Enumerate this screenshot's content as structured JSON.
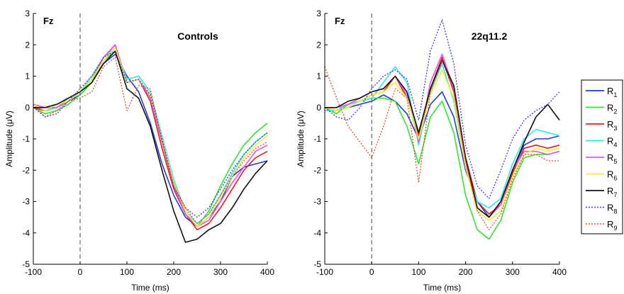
{
  "chart_data": [
    {
      "type": "line",
      "tag": "Fz",
      "title": "Controls",
      "xlabel": "Time (ms)",
      "ylabel": "Amplitude (μV)",
      "xlim": [
        -100,
        400
      ],
      "ylim": [
        -5,
        3
      ],
      "xticks": [
        "-100",
        "0",
        "100",
        "200",
        "300",
        "400"
      ],
      "yticks": [
        "-5",
        "-4",
        "-3",
        "-2",
        "-1",
        "0",
        "1",
        "2",
        "3"
      ],
      "vline_x": 0,
      "x": [
        -100,
        -75,
        -50,
        -25,
        0,
        25,
        50,
        75,
        100,
        125,
        150,
        175,
        200,
        225,
        250,
        275,
        300,
        325,
        350,
        375,
        400
      ],
      "series": [
        {
          "name": "R1",
          "values": [
            0.0,
            -0.1,
            0.0,
            0.2,
            0.4,
            0.8,
            1.4,
            1.7,
            1.0,
            0.5,
            -0.5,
            -1.8,
            -2.8,
            -3.5,
            -3.8,
            -3.5,
            -3.0,
            -2.2,
            -1.9,
            -1.8,
            -1.7
          ]
        },
        {
          "name": "R2",
          "values": [
            0.0,
            -0.2,
            -0.1,
            0.1,
            0.4,
            0.8,
            1.5,
            1.8,
            0.8,
            0.9,
            0.4,
            -1.0,
            -2.4,
            -3.3,
            -3.8,
            -3.3,
            -2.5,
            -1.8,
            -1.2,
            -0.8,
            -0.5
          ]
        },
        {
          "name": "R3",
          "values": [
            0.0,
            -0.1,
            0.0,
            0.2,
            0.5,
            0.9,
            1.6,
            2.0,
            0.8,
            0.9,
            0.2,
            -1.3,
            -2.6,
            -3.4,
            -3.9,
            -3.7,
            -3.2,
            -2.6,
            -2.0,
            -1.6,
            -1.4
          ]
        },
        {
          "name": "R4",
          "values": [
            0.1,
            -0.1,
            0.0,
            0.3,
            0.5,
            1.0,
            1.6,
            1.9,
            0.9,
            1.0,
            0.5,
            -0.9,
            -2.3,
            -3.3,
            -3.7,
            -3.4,
            -2.8,
            -2.1,
            -1.5,
            -1.1,
            -0.8
          ]
        },
        {
          "name": "R5",
          "values": [
            0.1,
            0.0,
            0.0,
            0.2,
            0.5,
            0.9,
            1.6,
            2.0,
            0.8,
            0.9,
            0.3,
            -1.1,
            -2.5,
            -3.4,
            -3.8,
            -3.6,
            -3.0,
            -2.4,
            -1.9,
            -1.4,
            -1.2
          ]
        },
        {
          "name": "R6",
          "values": [
            0.1,
            -0.1,
            0.1,
            0.2,
            0.5,
            0.9,
            1.5,
            1.9,
            0.8,
            0.9,
            0.4,
            -1.0,
            -2.4,
            -3.3,
            -3.8,
            -3.5,
            -2.9,
            -2.2,
            -1.6,
            -1.2,
            -0.9
          ]
        },
        {
          "name": "R7",
          "values": [
            0.0,
            0.0,
            0.1,
            0.3,
            0.5,
            0.8,
            1.4,
            1.8,
            0.6,
            0.3,
            -0.6,
            -2.0,
            -3.3,
            -4.3,
            -4.2,
            -3.9,
            -3.7,
            -3.2,
            -2.6,
            -2.1,
            -1.7
          ]
        },
        {
          "name": "R8",
          "values": [
            0.0,
            -0.3,
            -0.2,
            0.2,
            0.6,
            1.0,
            1.6,
            1.8,
            0.8,
            0.9,
            0.4,
            -1.0,
            -2.5,
            -3.2,
            -3.5,
            -3.2,
            -2.6,
            -2.0,
            -1.5,
            -1.1,
            -0.8
          ]
        },
        {
          "name": "R9",
          "values": [
            0.1,
            -0.3,
            -0.1,
            0.2,
            0.3,
            0.5,
            1.3,
            1.6,
            -0.1,
            0.7,
            0.6,
            -1.1,
            -2.5,
            -3.2,
            -3.7,
            -3.4,
            -2.8,
            -2.2,
            -1.7,
            -1.3,
            -1.1
          ]
        }
      ]
    },
    {
      "type": "line",
      "tag": "Fz",
      "title": "22q11.2",
      "xlabel": "Time (ms)",
      "ylabel": "Amplitude (μV)",
      "xlim": [
        -100,
        400
      ],
      "ylim": [
        -5,
        3
      ],
      "xticks": [
        "-100",
        "0",
        "100",
        "200",
        "300",
        "400"
      ],
      "yticks": [
        "-5",
        "-4",
        "-3",
        "-2",
        "-1",
        "0",
        "1",
        "2",
        "3"
      ],
      "vline_x": 0,
      "x": [
        -100,
        -75,
        -50,
        -25,
        0,
        25,
        50,
        75,
        100,
        125,
        150,
        175,
        200,
        225,
        250,
        275,
        300,
        325,
        350,
        375,
        400
      ],
      "series": [
        {
          "name": "R1",
          "values": [
            0.0,
            -0.1,
            0.0,
            0.1,
            0.2,
            0.4,
            0.2,
            -0.2,
            -1.0,
            0.1,
            0.5,
            -0.3,
            -2.0,
            -3.0,
            -3.5,
            -3.0,
            -2.0,
            -1.2,
            -1.0,
            -1.0,
            -0.9
          ]
        },
        {
          "name": "R2",
          "values": [
            0.0,
            -0.2,
            0.1,
            0.2,
            0.3,
            0.3,
            0.2,
            -0.6,
            -1.8,
            -0.3,
            0.2,
            -0.8,
            -2.8,
            -3.9,
            -4.2,
            -3.6,
            -2.4,
            -1.6,
            -1.5,
            -1.5,
            -1.4
          ]
        },
        {
          "name": "R3",
          "values": [
            0.0,
            -0.1,
            0.1,
            0.2,
            0.4,
            0.5,
            1.0,
            0.3,
            -0.9,
            0.6,
            1.6,
            0.5,
            -1.6,
            -3.0,
            -3.4,
            -3.1,
            -2.1,
            -1.3,
            -1.2,
            -1.3,
            -1.2
          ]
        },
        {
          "name": "R4",
          "values": [
            -0.1,
            -0.1,
            0.1,
            0.2,
            0.3,
            0.8,
            1.3,
            0.8,
            -1.2,
            0.5,
            1.4,
            0.2,
            -1.9,
            -3.0,
            -3.2,
            -2.9,
            -1.8,
            -1.0,
            -0.7,
            -0.8,
            -0.9
          ]
        },
        {
          "name": "R5",
          "values": [
            0.0,
            0.0,
            0.1,
            0.3,
            0.5,
            0.6,
            1.0,
            0.4,
            -1.1,
            0.8,
            1.7,
            0.6,
            -1.8,
            -3.2,
            -3.5,
            -3.1,
            -2.0,
            -1.4,
            -1.4,
            -1.5,
            -1.4
          ]
        },
        {
          "name": "R6",
          "values": [
            0.0,
            -0.1,
            0.0,
            0.2,
            0.4,
            0.5,
            0.8,
            0.3,
            -1.0,
            0.4,
            1.2,
            0.3,
            -1.9,
            -3.3,
            -3.6,
            -3.3,
            -2.2,
            -1.5,
            -1.3,
            -1.4,
            -1.3
          ]
        },
        {
          "name": "R7",
          "values": [
            0.0,
            0.0,
            0.2,
            0.3,
            0.5,
            0.6,
            1.0,
            0.5,
            -0.8,
            0.6,
            1.5,
            0.7,
            -1.6,
            -3.2,
            -3.5,
            -3.0,
            -2.0,
            -1.1,
            -0.3,
            0.1,
            -0.4
          ]
        },
        {
          "name": "R8",
          "values": [
            0.0,
            -0.3,
            -0.4,
            0.0,
            0.6,
            1.0,
            1.2,
            0.9,
            -0.4,
            1.8,
            2.8,
            1.4,
            -1.2,
            -2.5,
            -2.9,
            -2.0,
            -1.0,
            -0.4,
            -0.1,
            0.1,
            0.5
          ]
        },
        {
          "name": "R9",
          "values": [
            1.3,
            0.3,
            -0.6,
            -1.1,
            -1.6,
            -0.6,
            0.6,
            0.3,
            -2.4,
            0.5,
            1.5,
            0.5,
            -1.7,
            -3.3,
            -3.9,
            -3.4,
            -2.3,
            -1.5,
            -1.5,
            -1.7,
            -1.7
          ]
        }
      ]
    }
  ],
  "legend": {
    "entries": [
      {
        "main": "R",
        "sub": "1",
        "color": "#1f3fd6",
        "dash": false
      },
      {
        "main": "R",
        "sub": "2",
        "color": "#2ee62e",
        "dash": false
      },
      {
        "main": "R",
        "sub": "3",
        "color": "#e01f1f",
        "dash": false
      },
      {
        "main": "R",
        "sub": "4",
        "color": "#2ee8ea",
        "dash": false
      },
      {
        "main": "R",
        "sub": "5",
        "color": "#f24ef0",
        "dash": false
      },
      {
        "main": "R",
        "sub": "6",
        "color": "#f2ef2a",
        "dash": false
      },
      {
        "main": "R",
        "sub": "7",
        "color": "#111111",
        "dash": false
      },
      {
        "main": "R",
        "sub": "8",
        "color": "#3a3ae0",
        "dash": true
      },
      {
        "main": "R",
        "sub": "9",
        "color": "#e84a3a",
        "dash": true
      }
    ]
  }
}
